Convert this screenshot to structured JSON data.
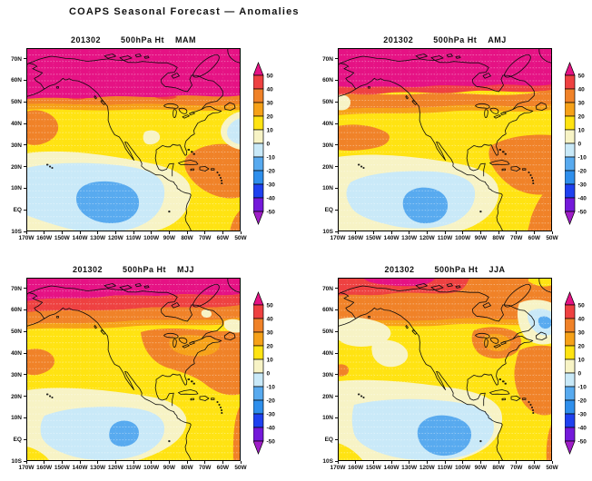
{
  "page_title": "COAPS Seasonal Forecast — Anomalies",
  "panels": [
    {
      "date": "201302",
      "field": "500hPa Ht",
      "season": "MAM"
    },
    {
      "date": "201302",
      "field": "500hPa Ht",
      "season": "AMJ"
    },
    {
      "date": "201302",
      "field": "500hPa Ht",
      "season": "MJJ"
    },
    {
      "date": "201302",
      "field": "500hPa Ht",
      "season": "JJA"
    }
  ],
  "axes": {
    "lat_labels": [
      "70N",
      "60N",
      "50N",
      "40N",
      "30N",
      "20N",
      "10N",
      "EQ",
      "10S"
    ],
    "lon_labels": [
      "170W",
      "160W",
      "150W",
      "140W",
      "130W",
      "120W",
      "110W",
      "100W",
      "90W",
      "80W",
      "70W",
      "60W",
      "50W"
    ]
  },
  "colorbar": {
    "tick_labels": [
      "50",
      "40",
      "30",
      "20",
      "10",
      "0",
      "-10",
      "-20",
      "-30",
      "-40",
      "-50"
    ],
    "band_colors": [
      "#ee4141",
      "#f08228",
      "#f6a118",
      "#ffe312",
      "#f7f3c5",
      "#c9e9f8",
      "#58aaef",
      "#2f8fec",
      "#1f41f0",
      "#7419da"
    ],
    "arrow_top_color": "#e51284",
    "arrow_bottom_color": "#a01ec8"
  },
  "chart_data": {
    "type": "heatmap",
    "title": "COAPS Seasonal Forecast — Anomalies",
    "variable": "500hPa Ht",
    "initialization": "201302",
    "seasons": [
      "MAM",
      "AMJ",
      "MJJ",
      "JJA"
    ],
    "colorbar_levels": [
      50,
      40,
      30,
      20,
      10,
      0,
      -10,
      -20,
      -30,
      -40,
      -50
    ],
    "lat_ticks": [
      "70N",
      "60N",
      "50N",
      "40N",
      "30N",
      "20N",
      "10N",
      "EQ",
      "10S"
    ],
    "lon_ticks": [
      "170W",
      "160W",
      "150W",
      "140W",
      "130W",
      "120W",
      "110W",
      "100W",
      "90W",
      "80W",
      "70W",
      "60W",
      "50W"
    ]
  }
}
